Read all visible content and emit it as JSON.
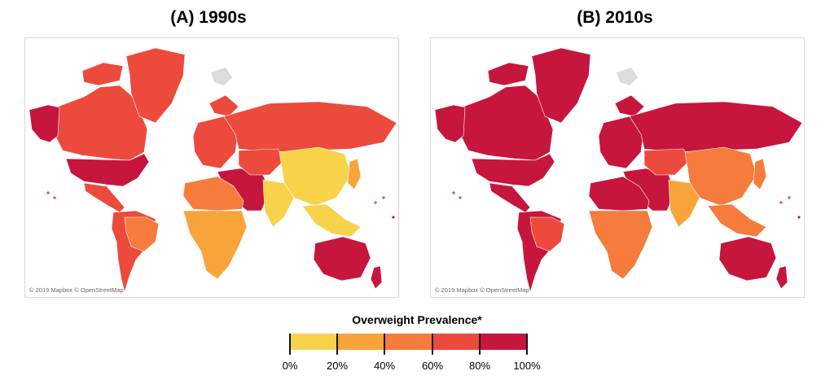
{
  "panels": [
    {
      "title": "(A) 1990s",
      "attribution": "© 2019 Mapbox © OpenStreetMap",
      "regions": [
        {
          "name": "north-america",
          "level": 3
        },
        {
          "name": "usa",
          "level": 4
        },
        {
          "name": "alaska",
          "level": 4
        },
        {
          "name": "greenland",
          "level": 3
        },
        {
          "name": "central-america",
          "level": 3
        },
        {
          "name": "south-america",
          "level": 3
        },
        {
          "name": "brazil",
          "level": 2
        },
        {
          "name": "europe",
          "level": 3
        },
        {
          "name": "russia",
          "level": 3
        },
        {
          "name": "middle-east",
          "level": 4
        },
        {
          "name": "north-africa",
          "level": 2
        },
        {
          "name": "sub-saharan-africa",
          "level": 1
        },
        {
          "name": "central-asia",
          "level": 3
        },
        {
          "name": "china",
          "level": 0
        },
        {
          "name": "south-asia",
          "level": 0
        },
        {
          "name": "southeast-asia",
          "level": 0
        },
        {
          "name": "japan",
          "level": 1
        },
        {
          "name": "australia",
          "level": 4
        },
        {
          "name": "new-zealand",
          "level": 4
        }
      ]
    },
    {
      "title": "(B) 2010s",
      "attribution": "© 2019 Mapbox © OpenStreetMap",
      "regions": [
        {
          "name": "north-america",
          "level": 4
        },
        {
          "name": "usa",
          "level": 4
        },
        {
          "name": "alaska",
          "level": 4
        },
        {
          "name": "greenland",
          "level": 4
        },
        {
          "name": "central-america",
          "level": 4
        },
        {
          "name": "south-america",
          "level": 4
        },
        {
          "name": "brazil",
          "level": 3
        },
        {
          "name": "europe",
          "level": 4
        },
        {
          "name": "russia",
          "level": 4
        },
        {
          "name": "middle-east",
          "level": 4
        },
        {
          "name": "north-africa",
          "level": 4
        },
        {
          "name": "sub-saharan-africa",
          "level": 2
        },
        {
          "name": "central-asia",
          "level": 3
        },
        {
          "name": "china",
          "level": 2
        },
        {
          "name": "south-asia",
          "level": 1
        },
        {
          "name": "southeast-asia",
          "level": 2
        },
        {
          "name": "japan",
          "level": 2
        },
        {
          "name": "australia",
          "level": 4
        },
        {
          "name": "new-zealand",
          "level": 4
        }
      ]
    }
  ],
  "legend": {
    "title": "Overweight Prevalence*",
    "colors": [
      "#f7d24a",
      "#f9a43a",
      "#f57c3c",
      "#ec4a3c",
      "#c6163d"
    ],
    "labels": [
      "0%",
      "20%",
      "40%",
      "60%",
      "80%",
      "100%"
    ]
  },
  "antarctic_color": "#dcdcdc"
}
